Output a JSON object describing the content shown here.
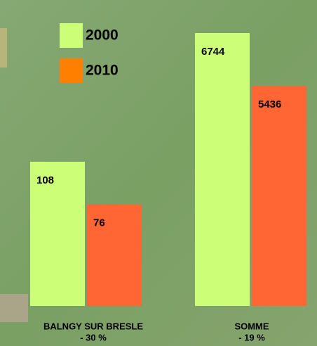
{
  "chart_data": {
    "type": "bar",
    "categories": [
      "BALNGY SUR BRESLE",
      "SOMME"
    ],
    "annotations": [
      "- 30 %",
      "- 19 %"
    ],
    "series": [
      {
        "name": "2000",
        "color": "#ccff77",
        "values": [
          108,
          6744
        ]
      },
      {
        "name": "2010",
        "color": "#ff6633",
        "values": [
          76,
          5436
        ]
      }
    ]
  }
}
